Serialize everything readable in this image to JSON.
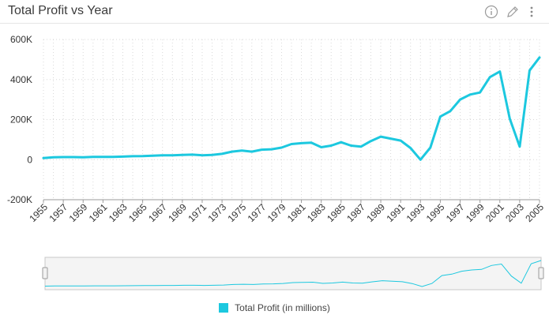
{
  "header": {
    "title": "Total Profit vs Year",
    "icons": [
      "info-icon",
      "pencil-icon",
      "kebab-menu-icon"
    ]
  },
  "legend": {
    "label": "Total Profit (in millions)"
  },
  "colors": {
    "series": "#1cc8df",
    "grid": "#d8d8d8",
    "axis": "#333333"
  },
  "chart_data": {
    "type": "line",
    "title": "Total Profit vs Year",
    "xlabel": "",
    "ylabel": "",
    "y_tick_labels": [
      "600K",
      "400K",
      "200K",
      "0",
      "-200K"
    ],
    "y_ticks": [
      600000,
      400000,
      200000,
      0,
      -200000
    ],
    "ylim": [
      -200000,
      600000
    ],
    "x_tick_labels": [
      "1955",
      "1957",
      "1959",
      "1961",
      "1963",
      "1965",
      "1967",
      "1969",
      "1971",
      "1973",
      "1975",
      "1977",
      "1979",
      "1981",
      "1983",
      "1985",
      "1987",
      "1989",
      "1991",
      "1993",
      "1995",
      "1997",
      "1999",
      "2001",
      "2003",
      "2005"
    ],
    "grid": true,
    "legend_position": "bottom",
    "x": [
      1955,
      1956,
      1957,
      1958,
      1959,
      1960,
      1961,
      1962,
      1963,
      1964,
      1965,
      1966,
      1967,
      1968,
      1969,
      1970,
      1971,
      1972,
      1973,
      1974,
      1975,
      1976,
      1977,
      1978,
      1979,
      1980,
      1981,
      1982,
      1983,
      1984,
      1985,
      1986,
      1987,
      1988,
      1989,
      1990,
      1991,
      1992,
      1993,
      1994,
      1995,
      1996,
      1997,
      1998,
      1999,
      2000,
      2001,
      2002,
      2003,
      2004,
      2005
    ],
    "series": [
      {
        "name": "Total Profit (in millions)",
        "values": [
          8000,
          12000,
          13000,
          13000,
          12000,
          14000,
          14000,
          14000,
          15000,
          17000,
          18000,
          20000,
          22000,
          22000,
          24000,
          25000,
          22000,
          24000,
          29000,
          40000,
          45000,
          40000,
          50000,
          52000,
          60000,
          78000,
          82000,
          85000,
          62000,
          70000,
          87000,
          70000,
          65000,
          93000,
          115000,
          105000,
          95000,
          58000,
          0,
          60000,
          215000,
          242000,
          300000,
          325000,
          335000,
          412000,
          440000,
          205000,
          65000,
          445000,
          510000
        ]
      }
    ]
  }
}
